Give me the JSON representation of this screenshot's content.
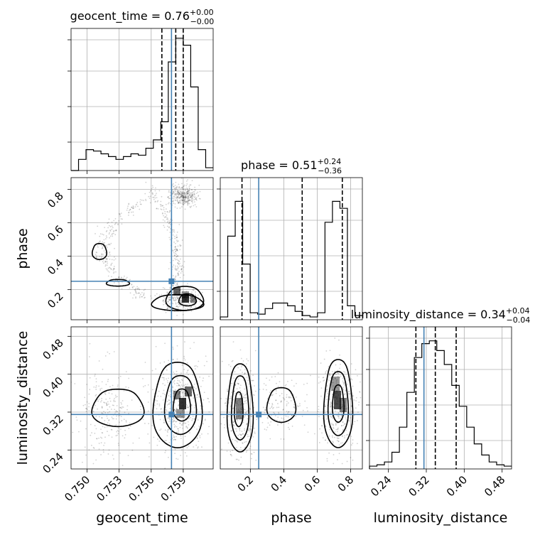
{
  "chart_data": {
    "type": "corner",
    "parameters": [
      {
        "name": "geocent_time",
        "title_prefix": "geocent_time = 0.76",
        "title_sup": "+0.00",
        "title_sub": "−0.00",
        "median": 0.7583,
        "quantiles": [
          0.757,
          0.7583,
          0.759
        ],
        "truth": 0.7579,
        "ticks": [
          0.75,
          0.753,
          0.756,
          0.759
        ],
        "tick_labels": [
          "0.750",
          "0.753",
          "0.756",
          "0.759"
        ],
        "range": [
          0.7485,
          0.7618
        ],
        "hist": [
          0,
          0.08,
          0.15,
          0.14,
          0.12,
          0.1,
          0.08,
          0.1,
          0.12,
          0.11,
          0.16,
          0.22,
          0.35,
          0.78,
          0.95,
          0.9,
          0.6,
          0.15,
          0.02
        ]
      },
      {
        "name": "phase",
        "title_prefix": "phase = 0.51",
        "title_sup": "+0.24",
        "title_sub": "−0.36",
        "median": 0.51,
        "quantiles": [
          0.15,
          0.51,
          0.75
        ],
        "truth": 0.25,
        "ticks": [
          0.2,
          0.4,
          0.6,
          0.8
        ],
        "tick_labels": [
          "0.2",
          "0.4",
          "0.6",
          "0.8"
        ],
        "range": [
          0.02,
          0.87
        ],
        "hist": [
          0.02,
          0.6,
          0.85,
          0.4,
          0.05,
          0.04,
          0.08,
          0.12,
          0.12,
          0.1,
          0.06,
          0.03,
          0.02,
          0.05,
          0.7,
          0.85,
          0.8,
          0.1,
          0.03
        ]
      },
      {
        "name": "luminosity_distance",
        "title_prefix": "luminosity_distance = 0.34",
        "title_sup": "+0.04",
        "title_sub": "−0.04",
        "median": 0.339,
        "quantiles": [
          0.298,
          0.339,
          0.383
        ],
        "truth": 0.315,
        "ticks": [
          0.24,
          0.32,
          0.4,
          0.48
        ],
        "tick_labels": [
          "0.24",
          "0.32",
          "0.40",
          "0.48"
        ],
        "range": [
          0.2,
          0.5
        ],
        "hist": [
          0.02,
          0.03,
          0.05,
          0.12,
          0.3,
          0.55,
          0.8,
          0.9,
          0.92,
          0.85,
          0.75,
          0.6,
          0.45,
          0.3,
          0.18,
          0.1,
          0.05,
          0.03,
          0.02
        ]
      }
    ],
    "truths_marker": [
      0.7579,
      0.25,
      0.315
    ],
    "grid": true
  }
}
